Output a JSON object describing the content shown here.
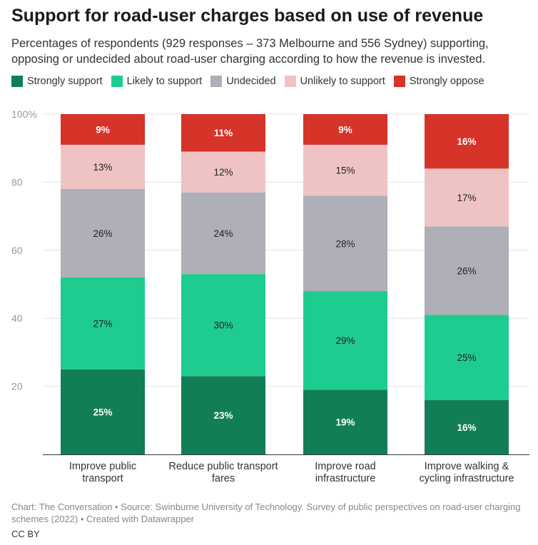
{
  "title": "Support for road-user charges based on use of revenue",
  "subtitle": "Percentages of respondents (929 responses – 373 Melbourne and 556 Sydney) supporting, opposing or undecided about road-user charging according to how the revenue is invested.",
  "footer": {
    "source": "Chart: The Conversation • Source: Swinburne University of Technology. Survey of public perspectives on road-user charging schemes (2022) • Created with Datawrapper",
    "license": "CC BY"
  },
  "chart_data": {
    "type": "bar",
    "stacked": true,
    "categories": [
      [
        "Improve public",
        "transport"
      ],
      [
        "Reduce public transport",
        "fares"
      ],
      [
        "Improve road",
        "infrastructure"
      ],
      [
        "Improve walking &",
        "cycling infrastructure"
      ]
    ],
    "series": [
      {
        "name": "Strongly support",
        "color": "#127e56",
        "label_color": "#ffffff",
        "values": [
          25,
          23,
          19,
          16
        ]
      },
      {
        "name": "Likely to support",
        "color": "#1fcc8f",
        "label_color": "#222222",
        "values": [
          27,
          30,
          29,
          25
        ]
      },
      {
        "name": "Undecided",
        "color": "#afafb7",
        "label_color": "#222222",
        "values": [
          26,
          24,
          28,
          26
        ]
      },
      {
        "name": "Unlikely to support",
        "color": "#efc3c4",
        "label_color": "#222222",
        "values": [
          13,
          12,
          15,
          17
        ]
      },
      {
        "name": "Strongly oppose",
        "color": "#d63329",
        "label_color": "#ffffff",
        "values": [
          9,
          11,
          9,
          16
        ]
      }
    ],
    "data_labels": [
      [
        "25%",
        "23%",
        "19%",
        "16%"
      ],
      [
        "27%",
        "30%",
        "29%",
        "25%"
      ],
      [
        "26%",
        "24%",
        "28%",
        "26%"
      ],
      [
        "13%",
        "12%",
        "15%",
        "17%"
      ],
      [
        "9%",
        "11%",
        "9%",
        "16%"
      ]
    ],
    "yticks": [
      {
        "value": 20,
        "label": "20"
      },
      {
        "value": 40,
        "label": "40"
      },
      {
        "value": 60,
        "label": "60"
      },
      {
        "value": 80,
        "label": "80"
      },
      {
        "value": 100,
        "label": "100%"
      }
    ],
    "ylim": [
      0,
      100
    ],
    "grid": true,
    "legend_position": "top-left"
  }
}
